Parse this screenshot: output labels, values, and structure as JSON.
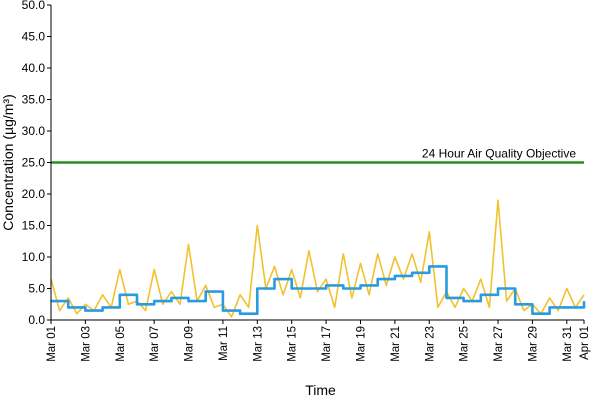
{
  "chart_data": {
    "type": "line",
    "title": "",
    "xlabel": "Time",
    "ylabel": "Concentration (µg/m³)",
    "ylim": [
      0,
      50
    ],
    "yticks": [
      "0.0",
      "5.0",
      "10.0",
      "15.0",
      "20.0",
      "25.0",
      "30.0",
      "35.0",
      "40.0",
      "45.0",
      "50.0"
    ],
    "xlim": [
      "2024-03-01",
      "2024-04-01"
    ],
    "xticks": [
      "Mar 01",
      "Mar 03",
      "Mar 05",
      "Mar 07",
      "Mar 09",
      "Mar 11",
      "Mar 13",
      "Mar 15",
      "Mar 17",
      "Mar 19",
      "Mar 21",
      "Mar 23",
      "Mar 25",
      "Mar 27",
      "Mar 29",
      "Mar 31",
      "Apr 01"
    ],
    "grid": false,
    "legend": "none",
    "objective": {
      "label": "24 Hour Air Quality Objective",
      "value": 25.0,
      "color": "#2e8b22"
    },
    "series": [
      {
        "color": "#f2c12e",
        "style": "hourly",
        "x": [
          "2024-03-01",
          "2024-03-01T12:00",
          "2024-03-02",
          "2024-03-02T12:00",
          "2024-03-03",
          "2024-03-03T12:00",
          "2024-03-04",
          "2024-03-04T12:00",
          "2024-03-05",
          "2024-03-05T12:00",
          "2024-03-06",
          "2024-03-06T12:00",
          "2024-03-07",
          "2024-03-07T12:00",
          "2024-03-08",
          "2024-03-08T12:00",
          "2024-03-09",
          "2024-03-09T12:00",
          "2024-03-10",
          "2024-03-10T12:00",
          "2024-03-11",
          "2024-03-11T12:00",
          "2024-03-12",
          "2024-03-12T12:00",
          "2024-03-13",
          "2024-03-13T12:00",
          "2024-03-14",
          "2024-03-14T12:00",
          "2024-03-15",
          "2024-03-15T12:00",
          "2024-03-16",
          "2024-03-16T12:00",
          "2024-03-17",
          "2024-03-17T12:00",
          "2024-03-18",
          "2024-03-18T12:00",
          "2024-03-19",
          "2024-03-19T12:00",
          "2024-03-20",
          "2024-03-20T12:00",
          "2024-03-21",
          "2024-03-21T12:00",
          "2024-03-22",
          "2024-03-22T12:00",
          "2024-03-23",
          "2024-03-23T12:00",
          "2024-03-24",
          "2024-03-24T12:00",
          "2024-03-25",
          "2024-03-25T12:00",
          "2024-03-26",
          "2024-03-26T12:00",
          "2024-03-27",
          "2024-03-27T12:00",
          "2024-03-28",
          "2024-03-28T12:00",
          "2024-03-29",
          "2024-03-29T12:00",
          "2024-03-30",
          "2024-03-30T12:00",
          "2024-03-31",
          "2024-03-31T12:00",
          "2024-04-01"
        ],
        "values": [
          6.5,
          1.5,
          3.5,
          1.0,
          2.5,
          1.5,
          4.0,
          2.0,
          8.0,
          2.5,
          3.0,
          1.5,
          8.0,
          2.5,
          4.5,
          2.5,
          12.0,
          3.0,
          5.5,
          2.0,
          2.5,
          0.5,
          4.0,
          2.0,
          15.0,
          5.0,
          8.5,
          4.0,
          8.0,
          3.5,
          11.0,
          4.5,
          6.5,
          2.0,
          10.5,
          3.5,
          9.0,
          4.0,
          10.5,
          5.5,
          10.0,
          6.5,
          10.5,
          6.0,
          14.0,
          2.0,
          4.5,
          2.0,
          5.0,
          3.0,
          6.5,
          2.0,
          19.0,
          3.0,
          5.0,
          1.5,
          2.5,
          1.0,
          3.5,
          1.5,
          5.0,
          2.0,
          4.0
        ]
      },
      {
        "color": "#2b9be0",
        "style": "24-hour mean",
        "x": [
          "2024-03-01",
          "2024-03-02",
          "2024-03-03",
          "2024-03-04",
          "2024-03-05",
          "2024-03-06",
          "2024-03-07",
          "2024-03-08",
          "2024-03-09",
          "2024-03-10",
          "2024-03-11",
          "2024-03-12",
          "2024-03-13",
          "2024-03-14",
          "2024-03-15",
          "2024-03-16",
          "2024-03-17",
          "2024-03-18",
          "2024-03-19",
          "2024-03-20",
          "2024-03-21",
          "2024-03-22",
          "2024-03-23",
          "2024-03-24",
          "2024-03-25",
          "2024-03-26",
          "2024-03-27",
          "2024-03-28",
          "2024-03-29",
          "2024-03-30",
          "2024-03-31",
          "2024-04-01"
        ],
        "values": [
          3.0,
          2.0,
          1.5,
          2.0,
          4.0,
          2.5,
          3.0,
          3.5,
          3.0,
          4.5,
          1.5,
          1.0,
          5.0,
          6.5,
          5.0,
          5.0,
          5.5,
          5.0,
          5.5,
          6.5,
          7.0,
          7.5,
          8.5,
          3.5,
          3.0,
          4.0,
          5.0,
          2.5,
          1.0,
          2.0,
          2.0,
          3.0
        ]
      }
    ]
  }
}
